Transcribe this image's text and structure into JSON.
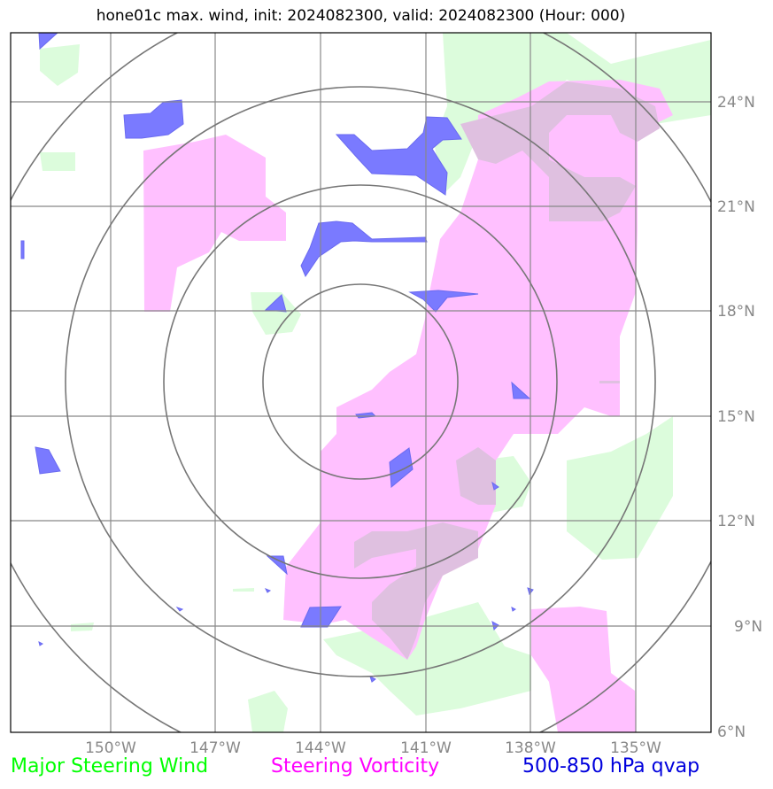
{
  "title": "hone01c max. wind, init: 2024082300, valid: 2024082300 (Hour: 000)",
  "map": {
    "lon_labels": [
      "150°W",
      "147°W",
      "144°W",
      "141°W",
      "138°W",
      "135°W"
    ],
    "lat_labels": [
      "24°N",
      "21°N",
      "18°N",
      "15°N",
      "12°N",
      "9°N",
      "6°N"
    ],
    "range_rings": 4
  },
  "legend": {
    "steering_wind": "Major Steering Wind",
    "steering_vorticity": "Steering Vorticity",
    "qvap": "500-850 hPa qvap"
  },
  "colors": {
    "steering_wind": "#00ff00",
    "steering_vorticity": "#ff00ff",
    "qvap": "#0000dd",
    "wind_fill": "#dcfcdc",
    "vorticity_fill": "#ffc0ff",
    "overlap_fill": "#dfc0e0",
    "qvap_fill": "#7a7aff"
  }
}
